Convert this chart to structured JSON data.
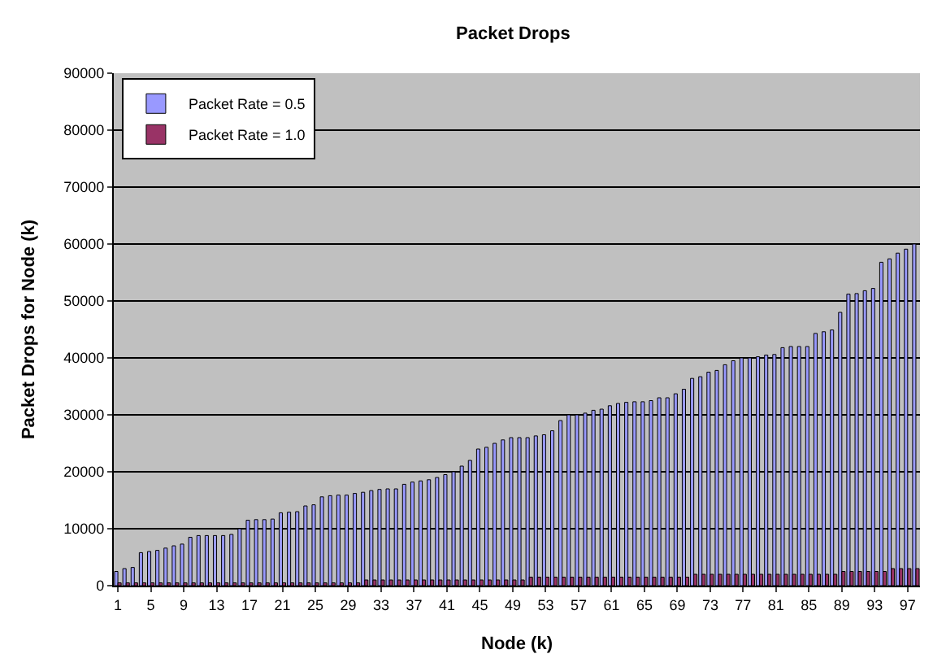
{
  "chart_data": {
    "type": "bar",
    "title": "Packet Drops",
    "xlabel": "Node (k)",
    "ylabel": "Packet Drops for Node (k)",
    "categories": [
      "1",
      null,
      null,
      null,
      "5",
      null,
      null,
      null,
      "9",
      null,
      null,
      null,
      "13",
      null,
      null,
      null,
      "17",
      null,
      null,
      null,
      "21",
      null,
      null,
      null,
      "25",
      null,
      null,
      null,
      "29",
      null,
      null,
      null,
      "33",
      null,
      null,
      null,
      "37",
      null,
      null,
      null,
      "41",
      null,
      null,
      null,
      "45",
      null,
      null,
      null,
      "49",
      null,
      null,
      null,
      "53",
      null,
      null,
      null,
      "57",
      null,
      null,
      null,
      "61",
      null,
      null,
      null,
      "65",
      null,
      null,
      null,
      "69",
      null,
      null,
      null,
      "73",
      null,
      null,
      null,
      "77",
      null,
      null,
      null,
      "81",
      null,
      null,
      null,
      "85",
      null,
      null,
      null,
      "89",
      null,
      null,
      null,
      "93",
      null,
      null,
      null,
      "97",
      null
    ],
    "series": [
      {
        "name": "Packet Rate = 0.5",
        "color": "#9999ff",
        "values": [
          2500,
          3000,
          3200,
          5800,
          6000,
          6200,
          6600,
          7000,
          7300,
          8500,
          8800,
          8800,
          8800,
          8800,
          9000,
          10000,
          11500,
          11600,
          11600,
          11700,
          12800,
          12900,
          13000,
          14000,
          14200,
          15600,
          15800,
          15900,
          15900,
          16200,
          16400,
          16700,
          16900,
          17000,
          17000,
          17800,
          18200,
          18400,
          18600,
          19000,
          19500,
          20000,
          21000,
          22000,
          24000,
          24300,
          25000,
          25600,
          26000,
          26000,
          26000,
          26300,
          26500,
          27200,
          29000,
          30000,
          30000,
          30300,
          30800,
          31000,
          31600,
          32000,
          32200,
          32300,
          32300,
          32500,
          33000,
          33000,
          33700,
          34500,
          36400,
          36700,
          37500,
          37800,
          38800,
          39500,
          40000,
          40000,
          40200,
          40500,
          40600,
          41800,
          42000,
          42000,
          42000,
          44300,
          44600,
          44900,
          48000,
          51200,
          51300,
          51800,
          52200,
          56800,
          57400,
          58400,
          59100,
          60000
        ]
      },
      {
        "name": "Packet Rate = 1.0",
        "color": "#993366",
        "values": [
          500,
          500,
          500,
          500,
          500,
          500,
          500,
          500,
          500,
          500,
          500,
          500,
          500,
          500,
          500,
          500,
          500,
          500,
          500,
          500,
          500,
          500,
          500,
          500,
          500,
          500,
          500,
          500,
          500,
          500,
          1000,
          1000,
          1000,
          1000,
          1000,
          1000,
          1000,
          1000,
          1000,
          1000,
          1000,
          1000,
          1000,
          1000,
          1000,
          1000,
          1000,
          1000,
          1000,
          1000,
          1500,
          1500,
          1500,
          1500,
          1500,
          1500,
          1500,
          1500,
          1500,
          1500,
          1500,
          1500,
          1500,
          1500,
          1500,
          1500,
          1500,
          1500,
          1500,
          1500,
          2000,
          2000,
          2000,
          2000,
          2000,
          2000,
          2000,
          2000,
          2000,
          2000,
          2000,
          2000,
          2000,
          2000,
          2000,
          2000,
          2000,
          2000,
          2500,
          2500,
          2500,
          2500,
          2500,
          2500,
          3000,
          3000,
          3000,
          3000
        ]
      }
    ],
    "ylim": [
      0,
      90000
    ],
    "yticks": [
      0,
      10000,
      20000,
      30000,
      40000,
      50000,
      60000,
      70000,
      80000,
      90000
    ],
    "grid": "y",
    "legend": "top left"
  }
}
